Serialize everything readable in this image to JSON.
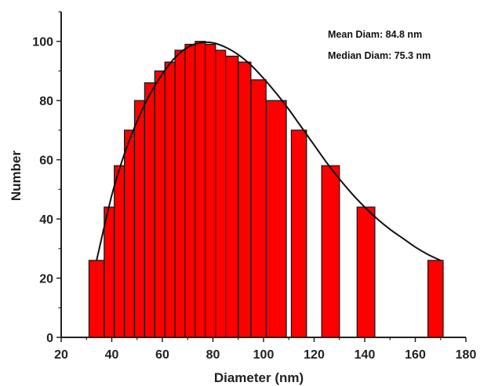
{
  "chart_data": {
    "type": "bar",
    "title": "",
    "xlabel": "Diameter (nm)",
    "ylabel": "Number",
    "xlim": [
      20,
      180
    ],
    "ylim": [
      0,
      110
    ],
    "x_ticks": [
      20,
      40,
      60,
      80,
      100,
      120,
      140,
      160,
      180
    ],
    "y_ticks": [
      0,
      20,
      40,
      60,
      80,
      100
    ],
    "bars": [
      {
        "x": 31,
        "width": 6,
        "value": 26
      },
      {
        "x": 37,
        "width": 4,
        "value": 44
      },
      {
        "x": 41,
        "width": 4,
        "value": 58
      },
      {
        "x": 45,
        "width": 4,
        "value": 70
      },
      {
        "x": 49,
        "width": 4,
        "value": 80
      },
      {
        "x": 53,
        "width": 4,
        "value": 86
      },
      {
        "x": 57,
        "width": 4,
        "value": 90
      },
      {
        "x": 61,
        "width": 4,
        "value": 93
      },
      {
        "x": 65,
        "width": 4,
        "value": 97
      },
      {
        "x": 69,
        "width": 4,
        "value": 99
      },
      {
        "x": 73,
        "width": 4,
        "value": 100
      },
      {
        "x": 77,
        "width": 4,
        "value": 99
      },
      {
        "x": 81,
        "width": 4,
        "value": 97
      },
      {
        "x": 85,
        "width": 5,
        "value": 95
      },
      {
        "x": 90,
        "width": 5,
        "value": 93
      },
      {
        "x": 95,
        "width": 6,
        "value": 87
      },
      {
        "x": 101,
        "width": 8,
        "value": 80
      },
      {
        "x": 111,
        "width": 6,
        "value": 70
      },
      {
        "x": 123,
        "width": 7,
        "value": 58
      },
      {
        "x": 137,
        "width": 7,
        "value": 44
      },
      {
        "x": 165,
        "width": 6,
        "value": 26
      }
    ],
    "fit_curve": {
      "x": [
        34,
        40,
        45,
        50,
        55,
        60,
        65,
        70,
        75,
        80,
        85,
        90,
        95,
        100,
        105,
        110,
        115,
        120,
        125,
        130,
        135,
        140,
        145,
        150,
        155,
        160,
        165,
        170
      ],
      "y": [
        26,
        48,
        62,
        73,
        82,
        89,
        94.5,
        98,
        99.5,
        99.5,
        98,
        95.5,
        92,
        87.5,
        82.5,
        77,
        71,
        65,
        59,
        53.5,
        48.5,
        44,
        40,
        36.5,
        33.5,
        30.5,
        28,
        26
      ]
    },
    "annotations": [
      "Mean Diam: 84.8 nm",
      "Median Diam: 75.3 nm"
    ],
    "colors": {
      "bar_fill": "#ff0000",
      "bar_stroke": "#1a1a1a",
      "curve": "#111111",
      "axis": "#222222"
    },
    "grid": false,
    "legend": "none"
  }
}
